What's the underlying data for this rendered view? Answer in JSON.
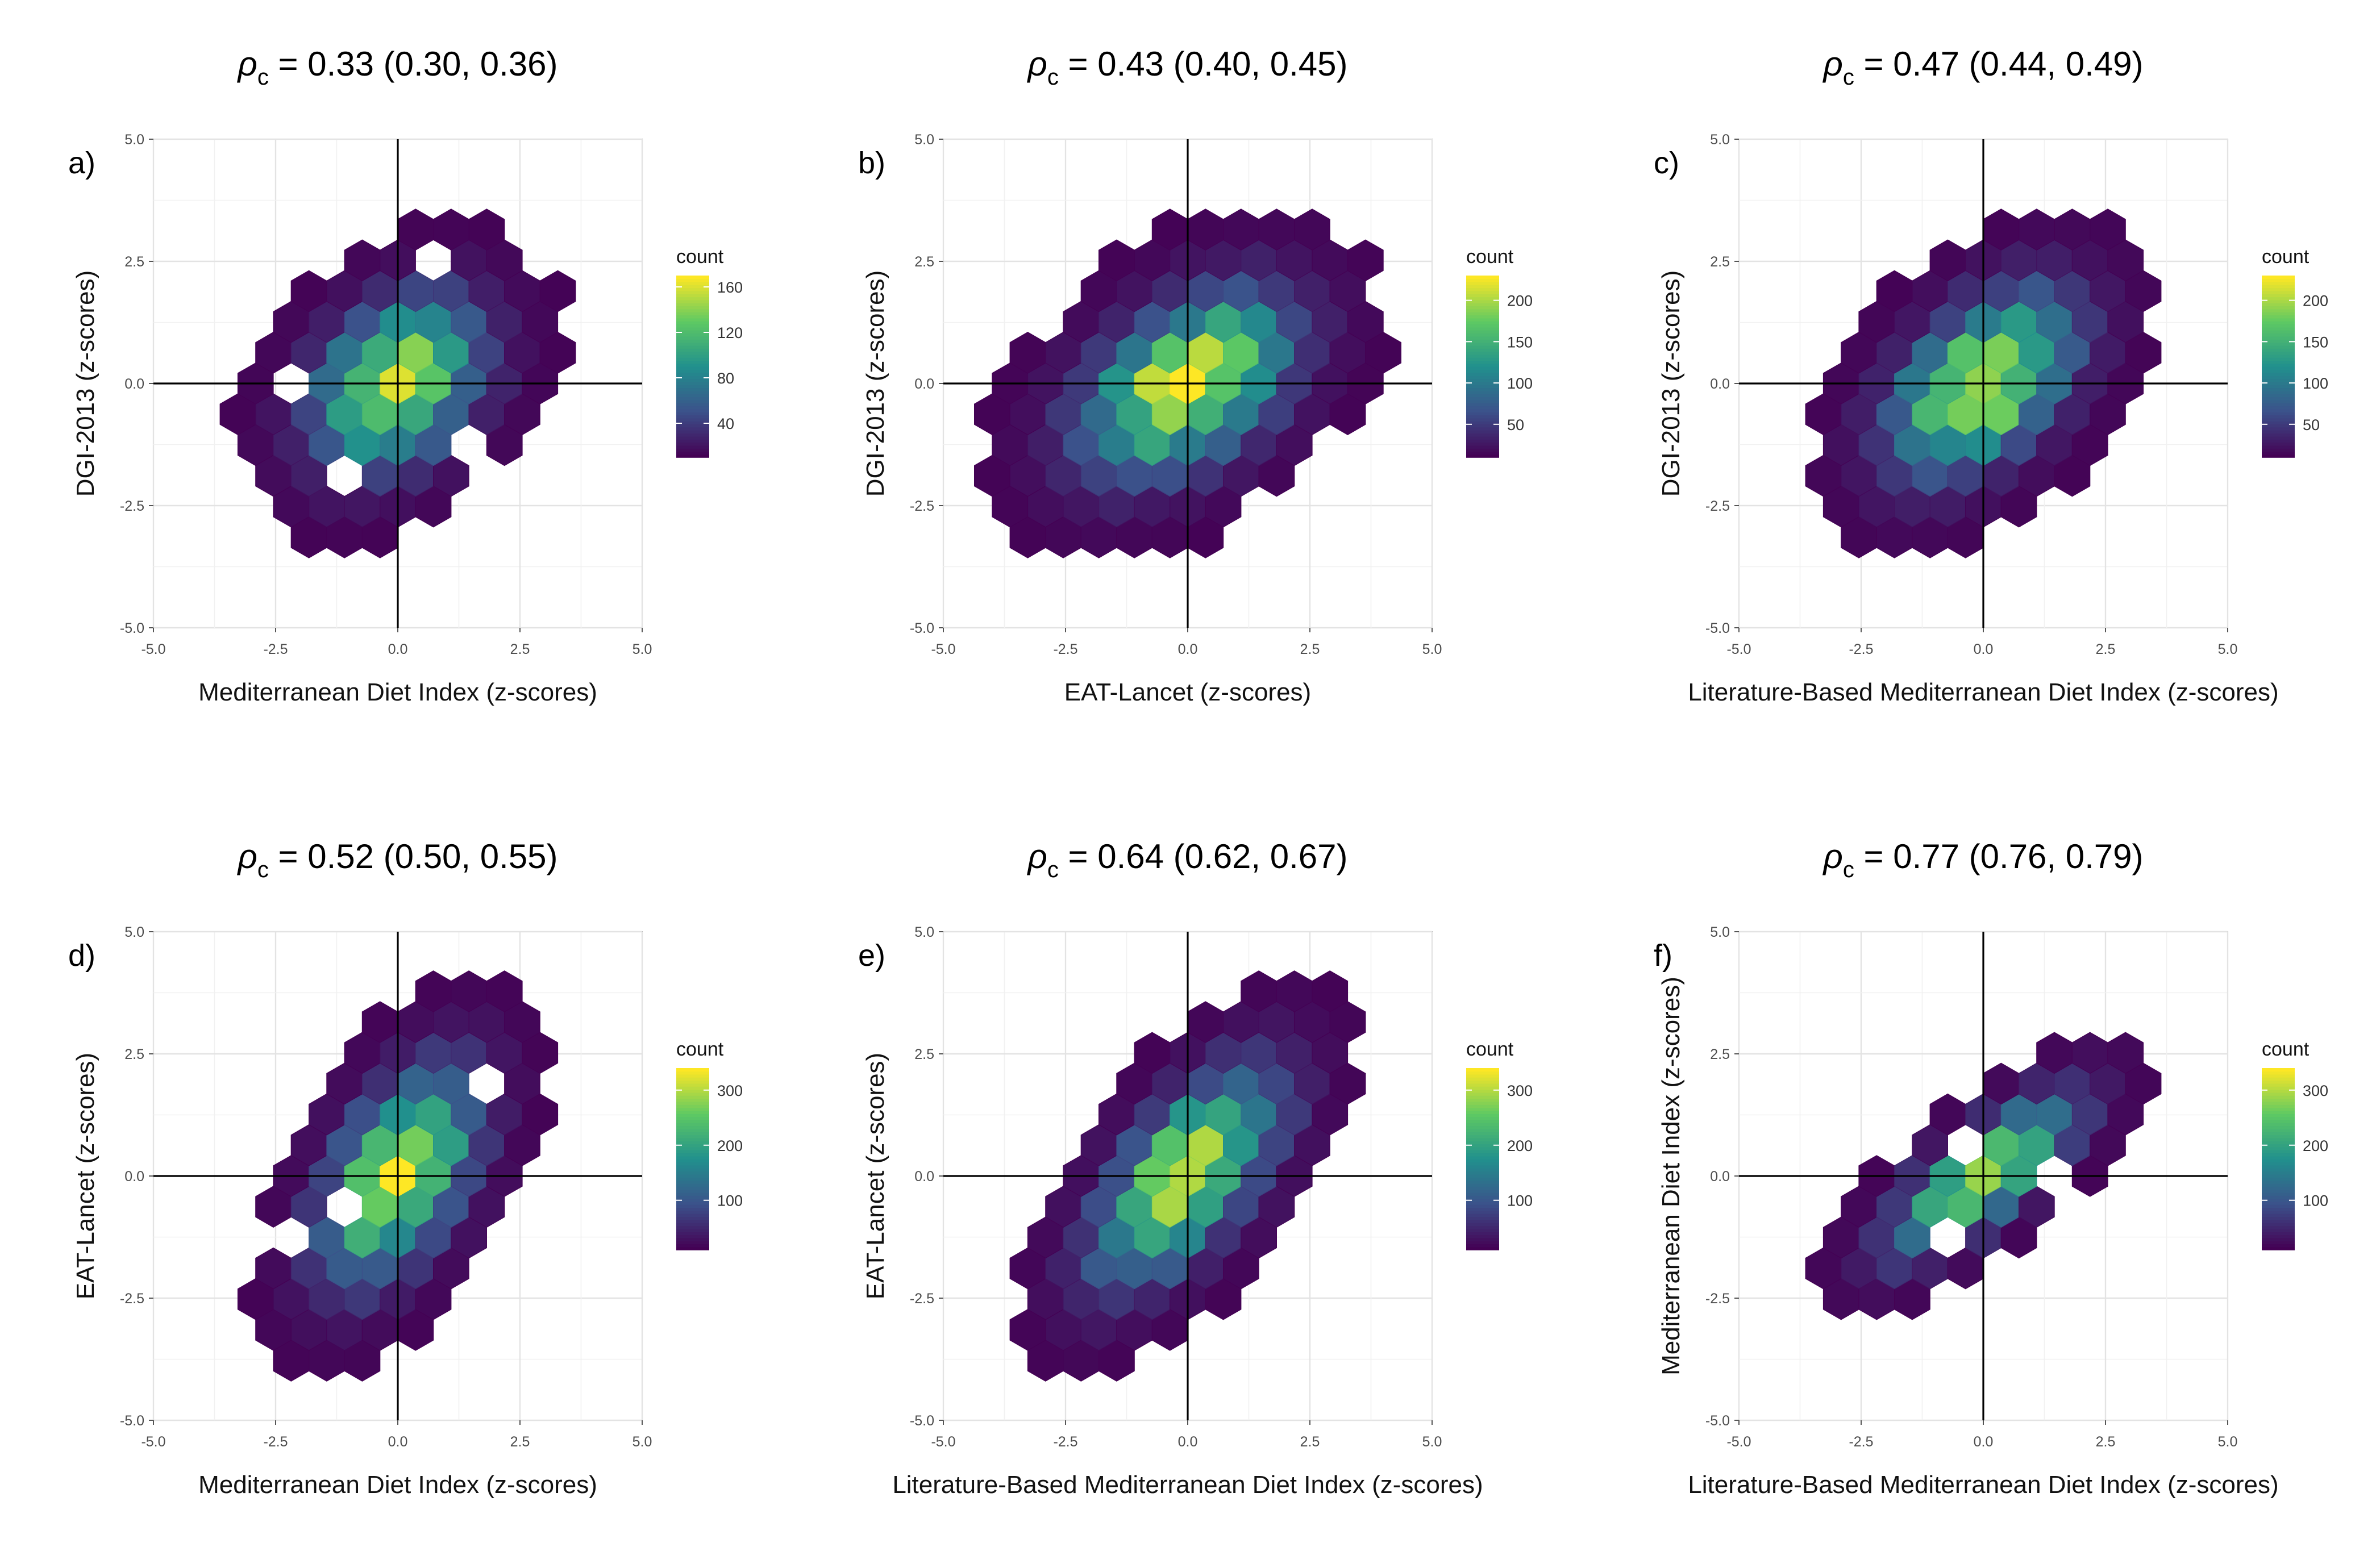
{
  "figure": {
    "colormap": [
      "#440154",
      "#3b528b",
      "#21908d",
      "#5dc963",
      "#fde725"
    ],
    "axis_ticks": [
      -5.0,
      -2.5,
      0.0,
      2.5,
      5.0
    ],
    "tick_labels": [
      "-5.0",
      "-2.5",
      "0.0",
      "2.5",
      "5.0"
    ],
    "legend_title": "count",
    "title_symbol": "ρ",
    "title_subscript": "c"
  },
  "chart_data": [
    {
      "type": "hexbin",
      "panel": "a)",
      "title_stat": "= 0.33 (0.30, 0.36)",
      "xlabel": "Mediterranean Diet Index (z-scores)",
      "ylabel": "DGI-2013 (z-scores)",
      "xlim": [
        -5.0,
        5.0
      ],
      "ylim": [
        -5.0,
        5.0
      ],
      "reference_lines": {
        "x": 0,
        "y": 0
      },
      "legend_ticks": [
        "40",
        "80",
        "120",
        "160"
      ],
      "color_range": [
        10,
        170
      ],
      "correlation": 0.33,
      "spread_x": 1.2,
      "spread_y": 1.2
    },
    {
      "type": "hexbin",
      "panel": "b)",
      "title_stat": "= 0.43 (0.40, 0.45)",
      "xlabel": "EAT-Lancet (z-scores)",
      "ylabel": "DGI-2013 (z-scores)",
      "xlim": [
        -5.0,
        5.0
      ],
      "ylim": [
        -5.0,
        5.0
      ],
      "reference_lines": {
        "x": 0,
        "y": 0
      },
      "legend_ticks": [
        "50",
        "100",
        "150",
        "200"
      ],
      "color_range": [
        10,
        230
      ],
      "correlation": 0.43,
      "spread_x": 1.5,
      "spread_y": 1.3
    },
    {
      "type": "hexbin",
      "panel": "c)",
      "title_stat": "= 0.47 (0.44, 0.49)",
      "xlabel": "Literature-Based Mediterranean Diet Index (z-scores)",
      "ylabel": "DGI-2013 (z-scores)",
      "xlim": [
        -5.0,
        5.0
      ],
      "ylim": [
        -5.0,
        5.0
      ],
      "reference_lines": {
        "x": 0,
        "y": 0
      },
      "legend_ticks": [
        "50",
        "100",
        "150",
        "200"
      ],
      "color_range": [
        10,
        230
      ],
      "correlation": 0.47,
      "spread_x": 1.3,
      "spread_y": 1.3
    },
    {
      "type": "hexbin",
      "panel": "d)",
      "title_stat": "= 0.52 (0.50, 0.55)",
      "xlabel": "Mediterranean Diet Index (z-scores)",
      "ylabel": "EAT-Lancet (z-scores)",
      "xlim": [
        -5.0,
        5.0
      ],
      "ylim": [
        -5.0,
        5.0
      ],
      "reference_lines": {
        "x": 0,
        "y": 0
      },
      "legend_ticks": [
        "100",
        "200",
        "300"
      ],
      "color_range": [
        10,
        340
      ],
      "correlation": 0.52,
      "spread_x": 1.1,
      "spread_y": 1.5
    },
    {
      "type": "hexbin",
      "panel": "e)",
      "title_stat": "= 0.64 (0.62, 0.67)",
      "xlabel": "Literature-Based Mediterranean Diet Index (z-scores)",
      "ylabel": "EAT-Lancet (z-scores)",
      "xlim": [
        -5.0,
        5.0
      ],
      "ylim": [
        -5.0,
        5.0
      ],
      "reference_lines": {
        "x": 0,
        "y": 0
      },
      "legend_ticks": [
        "100",
        "200",
        "300"
      ],
      "color_range": [
        10,
        340
      ],
      "correlation": 0.64,
      "spread_x": 1.3,
      "spread_y": 1.5
    },
    {
      "type": "hexbin",
      "panel": "f)",
      "title_stat": "= 0.77 (0.76, 0.79)",
      "xlabel": "Literature-Based Mediterranean Diet Index (z-scores)",
      "ylabel": "Mediterranean Diet Index (z-scores)",
      "xlim": [
        -5.0,
        5.0
      ],
      "ylim": [
        -5.0,
        5.0
      ],
      "reference_lines": {
        "x": 0,
        "y": 0
      },
      "legend_ticks": [
        "100",
        "200",
        "300"
      ],
      "color_range": [
        10,
        340
      ],
      "correlation": 0.77,
      "spread_x": 1.3,
      "spread_y": 1.1
    }
  ]
}
